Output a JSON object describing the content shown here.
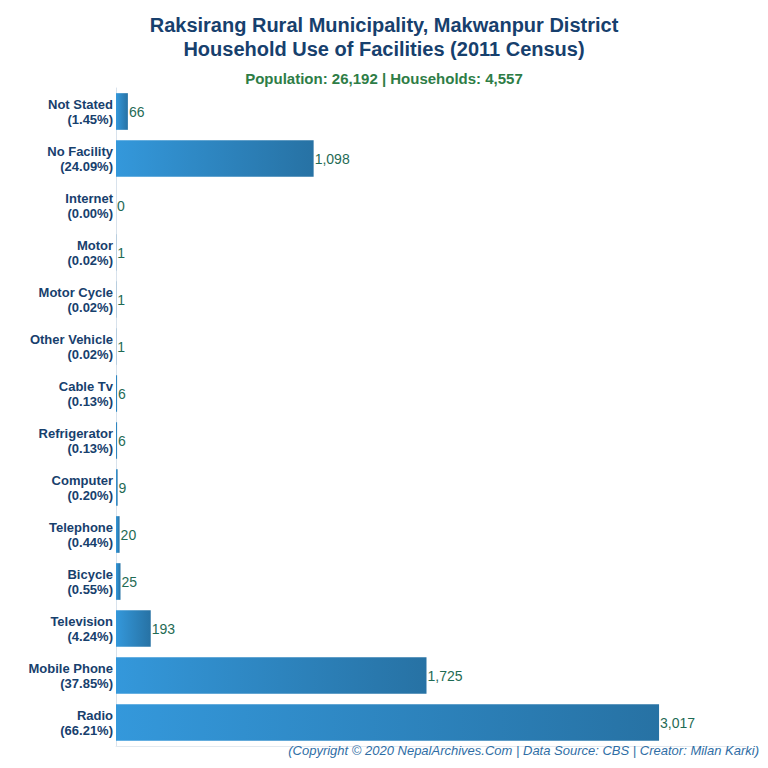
{
  "chart_data": {
    "type": "bar",
    "orientation": "horizontal",
    "title": "Raksirang Rural Municipality, Makwanpur District\nHousehold Use of Facilities (2011 Census)",
    "subtitle": "Population: 26,192 | Households: 4,557",
    "footer": "(Copyright © 2020 NepalArchives.Com | Data Source: CBS | Creator: Milan Karki)",
    "categories": [
      "Not Stated",
      "No Facility",
      "Internet",
      "Motor",
      "Motor Cycle",
      "Other Vehicle",
      "Cable Tv",
      "Refrigerator",
      "Computer",
      "Telephone",
      "Bicycle",
      "Television",
      "Mobile Phone",
      "Radio"
    ],
    "category_shares": [
      "(1.45%)",
      "(24.09%)",
      "(0.00%)",
      "(0.02%)",
      "(0.02%)",
      "(0.02%)",
      "(0.13%)",
      "(0.13%)",
      "(0.20%)",
      "(0.44%)",
      "(0.55%)",
      "(4.24%)",
      "(37.85%)",
      "(66.21%)"
    ],
    "values": [
      66,
      1098,
      0,
      1,
      1,
      1,
      6,
      6,
      9,
      20,
      25,
      193,
      1725,
      3017
    ],
    "value_labels": [
      "66",
      "1,098",
      "0",
      "1",
      "1",
      "1",
      "6",
      "6",
      "9",
      "20",
      "25",
      "193",
      "1,725",
      "3,017"
    ],
    "color": "#3498db",
    "xlim": [
      0,
      3500
    ],
    "data_labels": true,
    "tick_labels": "y",
    "grid": false
  }
}
